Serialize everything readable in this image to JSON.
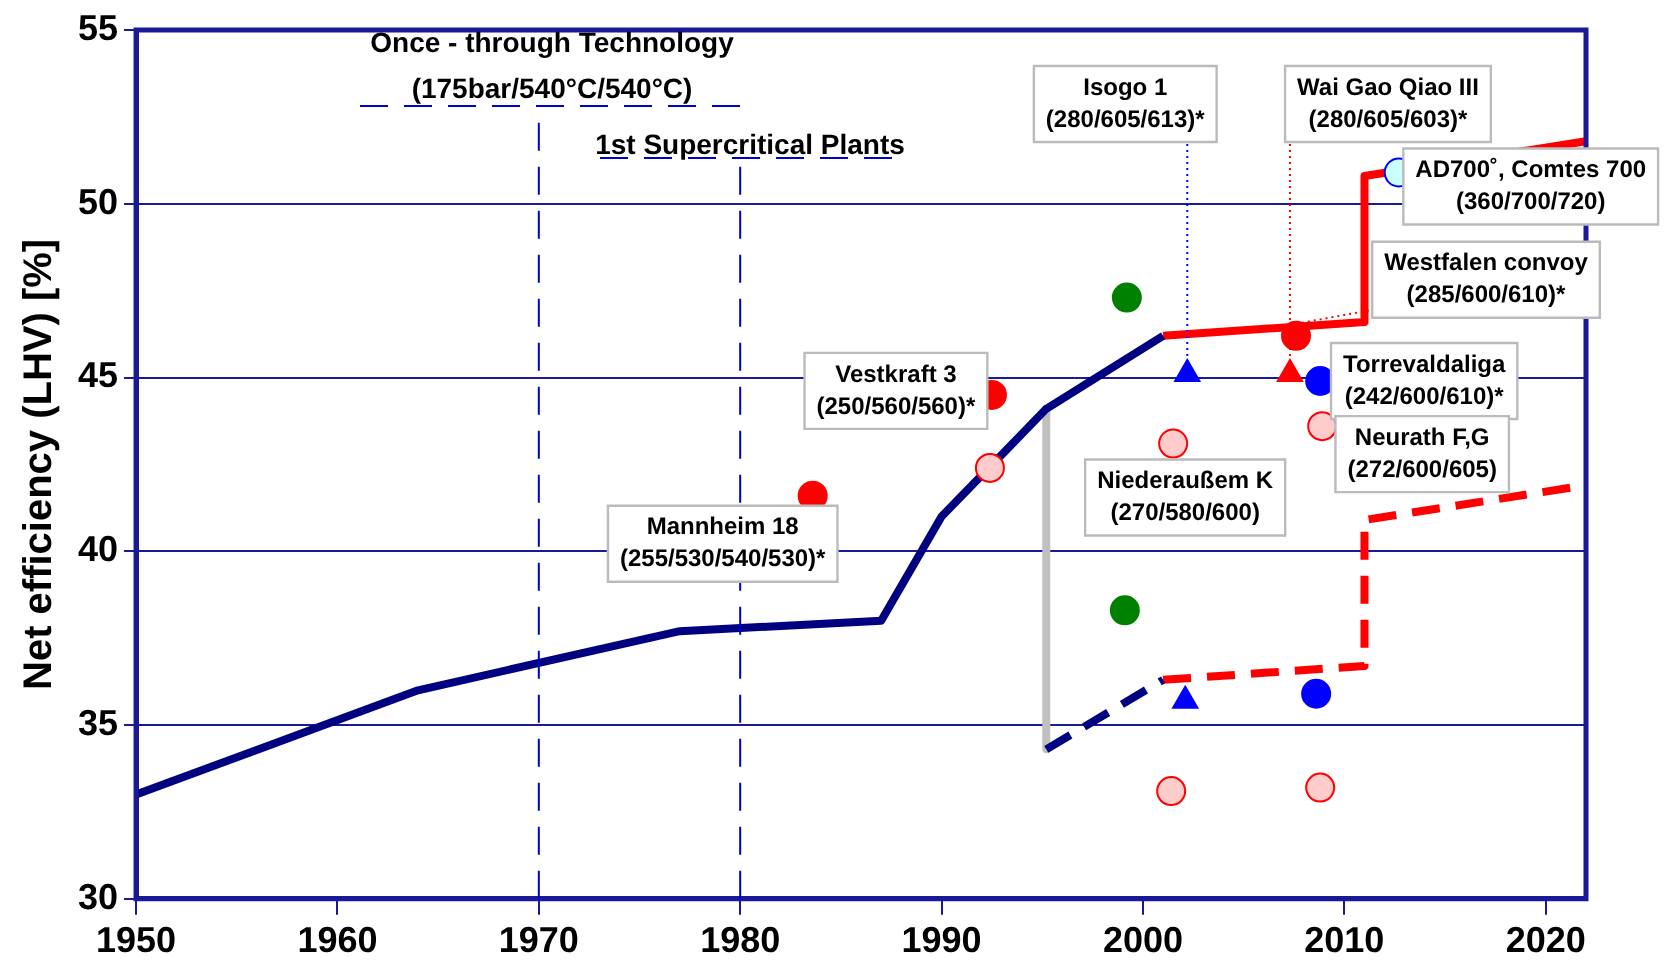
{
  "chart_data": {
    "type": "line",
    "ylabel": "Net efficiency (LHV) [%]",
    "xlim": [
      1950,
      2022
    ],
    "xticks": [
      1950,
      1960,
      1970,
      1980,
      1990,
      2000,
      2010,
      2020
    ],
    "ylim": [
      30,
      55
    ],
    "yticks": [
      30,
      35,
      40,
      45,
      50,
      55
    ],
    "grid": "y",
    "legend": false,
    "series": [
      {
        "type": "line",
        "color": "#000080",
        "marker": "none",
        "line_style": "solid",
        "x": [
          1950,
          1964,
          1977,
          1987,
          1990,
          1995.2,
          2001
        ],
        "values": [
          33,
          36,
          37.7,
          38,
          41,
          44.1,
          46.2
        ]
      },
      {
        "type": "line",
        "color": "#ff0000",
        "marker": "none",
        "line_style": "solid",
        "x": [
          2001,
          2011,
          2011,
          2022
        ],
        "values": [
          46.2,
          46.6,
          50.8,
          51.8
        ]
      },
      {
        "type": "line",
        "color": "#000080",
        "marker": "none",
        "line_style": "dashed",
        "x": [
          1995.2,
          2001
        ],
        "values": [
          34.3,
          36.3
        ]
      },
      {
        "type": "line",
        "color": "#ff0000",
        "marker": "none",
        "line_style": "dashed",
        "x": [
          2001,
          2011,
          2011,
          2022
        ],
        "values": [
          36.3,
          36.7,
          40.9,
          41.9
        ]
      },
      {
        "type": "line",
        "color": "#c0c0c0",
        "marker": "none",
        "line_style": "solid",
        "x": [
          1995.2,
          1995.2
        ],
        "values": [
          44.1,
          34.3
        ]
      },
      {
        "type": "scatter",
        "color": "#ff0000",
        "marker": "circle",
        "x": [
          1983.6,
          1992.5,
          2007.6
        ],
        "values": [
          41.6,
          44.5,
          46.2
        ]
      },
      {
        "type": "scatter",
        "color": "#ff0000",
        "marker": "triangle",
        "x": [
          2007.3
        ],
        "values": [
          45.1
        ]
      },
      {
        "type": "scatter",
        "color": "#0000ff",
        "marker": "triangle",
        "x": [
          2002.2,
          2002.1
        ],
        "values": [
          45.1,
          35.7
        ]
      },
      {
        "type": "scatter",
        "color": "#0000ff",
        "marker": "circle",
        "x": [
          2008.8,
          2008.6
        ],
        "values": [
          44.9,
          35.9
        ]
      },
      {
        "type": "scatter",
        "color": "#008000",
        "marker": "circle",
        "x": [
          1999.2,
          1999.1
        ],
        "values": [
          47.3,
          38.3
        ]
      },
      {
        "type": "scatter",
        "color": "#ffcccc",
        "marker": "circle",
        "x": [
          1992.4,
          2001.5,
          2008.9,
          2001.4,
          2008.8
        ],
        "values": [
          42.4,
          43.1,
          43.6,
          33.1,
          33.2
        ]
      },
      {
        "type": "scatter",
        "color": "#ccffff",
        "marker": "circle",
        "x": [
          2012.7
        ],
        "values": [
          50.9
        ]
      }
    ],
    "ref_lines": [
      {
        "axis": "x",
        "value": 1970,
        "label": "Once - through Technology\n(175bar/540°C/540°C)",
        "color": "#0000cc",
        "line_style": "dashed"
      },
      {
        "axis": "x",
        "value": 1980,
        "label": "1st Supercritical Plants",
        "color": "#0000cc",
        "line_style": "dashed"
      }
    ],
    "annotations": [
      {
        "text": "Isogo 1\n(280/605/613)*",
        "x": 2002.2,
        "y": 45.1
      },
      {
        "text": "Wai Gao Qiao III\n(280/605/603)*",
        "x": 2007.3,
        "y": 45.1
      },
      {
        "text": "AD700˚, Comtes 700\n(360/700/720)",
        "x": 2012.7,
        "y": 50.9
      },
      {
        "text": "Westfalen convoy\n(285/600/610)*",
        "x": 2007.6,
        "y": 46.2
      },
      {
        "text": "Torrevaldaliga\n(242/600/610)*",
        "x": 2008.8,
        "y": 44.9
      },
      {
        "text": "Neurath F,G\n(272/600/605)",
        "x": 2008.9,
        "y": 43.6
      },
      {
        "text": "Niederaußem K\n(270/580/600)",
        "x": 2001.5,
        "y": 43.1
      },
      {
        "text": "Vestkraft 3\n(250/560/560)*",
        "x": 1992.5,
        "y": 44.5
      },
      {
        "text": "Mannheim 18\n(255/530/540/530)*",
        "x": 1983.6,
        "y": 41.6
      }
    ]
  }
}
